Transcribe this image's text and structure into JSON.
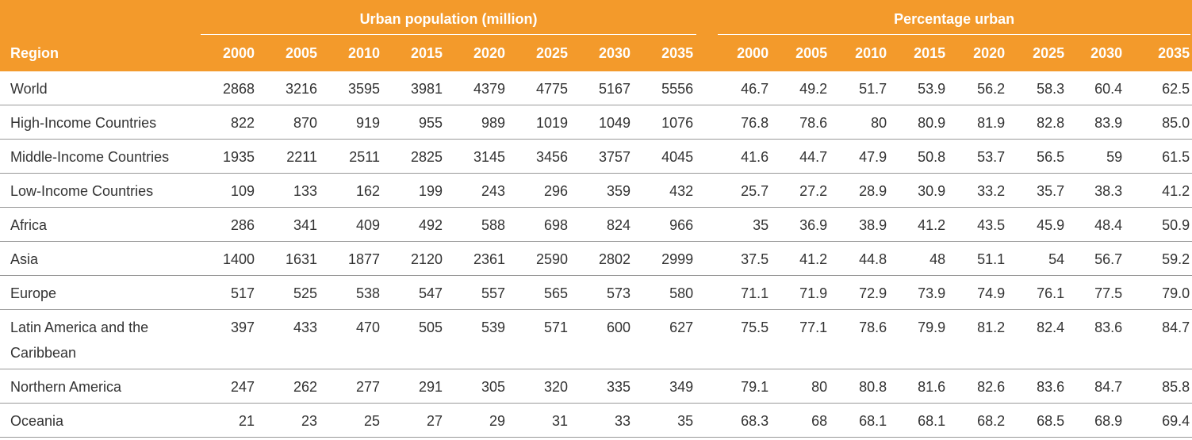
{
  "table": {
    "header": {
      "region": "Region",
      "groups": [
        {
          "title": "Urban population (million)",
          "years": [
            "2000",
            "2005",
            "2010",
            "2015",
            "2020",
            "2025",
            "2030",
            "2035"
          ]
        },
        {
          "title": "Percentage urban",
          "years": [
            "2000",
            "2005",
            "2010",
            "2015",
            "2020",
            "2025",
            "2030",
            "2035"
          ]
        }
      ]
    },
    "rows": [
      [
        "World",
        "2868",
        "3216",
        "3595",
        "3981",
        "4379",
        "4775",
        "5167",
        "5556",
        "46.7",
        "49.2",
        "51.7",
        "53.9",
        "56.2",
        "58.3",
        "60.4",
        "62.5"
      ],
      [
        "High-Income Countries",
        "822",
        "870",
        "919",
        "955",
        "989",
        "1019",
        "1049",
        "1076",
        "76.8",
        "78.6",
        "80",
        "80.9",
        "81.9",
        "82.8",
        "83.9",
        "85.0"
      ],
      [
        "Middle-Income Countries",
        "1935",
        "2211",
        "2511",
        "2825",
        "3145",
        "3456",
        "3757",
        "4045",
        "41.6",
        "44.7",
        "47.9",
        "50.8",
        "53.7",
        "56.5",
        "59",
        "61.5"
      ],
      [
        "Low-Income Countries",
        "109",
        "133",
        "162",
        "199",
        "243",
        "296",
        "359",
        "432",
        "25.7",
        "27.2",
        "28.9",
        "30.9",
        "33.2",
        "35.7",
        "38.3",
        "41.2"
      ],
      [
        "Africa",
        "286",
        "341",
        "409",
        "492",
        "588",
        "698",
        "824",
        "966",
        "35",
        "36.9",
        "38.9",
        "41.2",
        "43.5",
        "45.9",
        "48.4",
        "50.9"
      ],
      [
        "Asia",
        "1400",
        "1631",
        "1877",
        "2120",
        "2361",
        "2590",
        "2802",
        "2999",
        "37.5",
        "41.2",
        "44.8",
        "48",
        "51.1",
        "54",
        "56.7",
        "59.2"
      ],
      [
        "Europe",
        "517",
        "525",
        "538",
        "547",
        "557",
        "565",
        "573",
        "580",
        "71.1",
        "71.9",
        "72.9",
        "73.9",
        "74.9",
        "76.1",
        "77.5",
        "79.0"
      ],
      [
        "Latin America and the Caribbean",
        "397",
        "433",
        "470",
        "505",
        "539",
        "571",
        "600",
        "627",
        "75.5",
        "77.1",
        "78.6",
        "79.9",
        "81.2",
        "82.4",
        "83.6",
        "84.7"
      ],
      [
        "Northern America",
        "247",
        "262",
        "277",
        "291",
        "305",
        "320",
        "335",
        "349",
        "79.1",
        "80",
        "80.8",
        "81.6",
        "82.6",
        "83.6",
        "84.7",
        "85.8"
      ],
      [
        "Oceania",
        "21",
        "23",
        "25",
        "27",
        "29",
        "31",
        "33",
        "35",
        "68.3",
        "68",
        "68.1",
        "68.1",
        "68.2",
        "68.5",
        "68.9",
        "69.4"
      ]
    ]
  }
}
